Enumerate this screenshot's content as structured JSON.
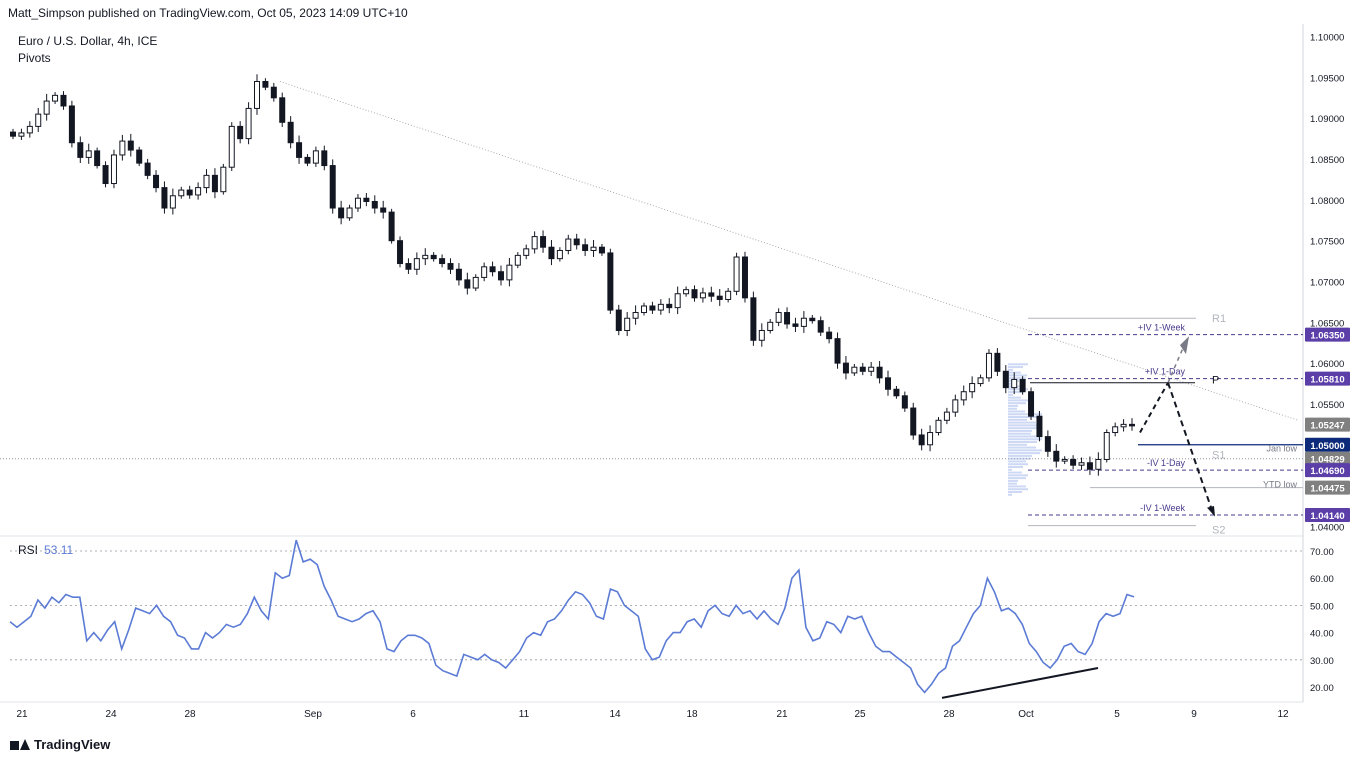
{
  "header": {
    "publisher_line": "Matt_Simpson published on TradingView.com, Oct 05, 2023 14:09 UTC+10"
  },
  "legend": {
    "symbol": "Euro / U.S. Dollar, 4h, ICE",
    "indicator": "Pivots"
  },
  "rsi": {
    "label": "RSI",
    "value": "53.11"
  },
  "footer": {
    "brand": "TradingView"
  },
  "colors": {
    "up": "#ffffff",
    "down": "#131722",
    "rsi": "#5b7bd5",
    "label_purple": "#5b3ea8",
    "label_navy": "#0d2a7a",
    "label_grey": "#808080"
  },
  "chart_data": {
    "type": "candlestick",
    "x_tick_labels": [
      "21",
      "24",
      "28",
      "Sep",
      "6",
      "11",
      "14",
      "18",
      "21",
      "25",
      "28",
      "Oct",
      "5",
      "9",
      "12"
    ],
    "y_tick_labels": [
      "1.10000",
      "1.09500",
      "1.09000",
      "1.08500",
      "1.08000",
      "1.07500",
      "1.07000",
      "1.06500",
      "1.06000",
      "1.05500",
      "1.05000",
      "1.04500",
      "1.04000"
    ],
    "ylim": [
      1.0395,
      1.1005
    ],
    "close_path": [
      1.0878,
      1.0882,
      1.089,
      1.0905,
      1.0921,
      1.0928,
      1.0915,
      1.087,
      1.0852,
      1.086,
      1.0842,
      1.082,
      1.0855,
      1.0872,
      1.0861,
      1.0845,
      1.083,
      1.0815,
      1.079,
      1.0805,
      1.0812,
      1.0806,
      1.0815,
      1.083,
      1.081,
      1.084,
      1.089,
      1.0875,
      1.0912,
      1.0945,
      1.0938,
      1.0925,
      1.0895,
      1.087,
      1.0852,
      1.0845,
      1.086,
      1.0842,
      1.079,
      1.0778,
      1.079,
      1.0802,
      1.0798,
      1.079,
      1.0785,
      1.075,
      1.0722,
      1.0715,
      1.0728,
      1.0732,
      1.0728,
      1.0722,
      1.0715,
      1.0702,
      1.0692,
      1.0705,
      1.0718,
      1.0712,
      1.0702,
      1.072,
      1.0732,
      1.074,
      1.0755,
      1.0742,
      1.0728,
      1.0738,
      1.0752,
      1.0745,
      1.0738,
      1.0742,
      1.0735,
      1.0665,
      1.064,
      1.0655,
      1.0662,
      1.067,
      1.0665,
      1.0672,
      1.0668,
      1.0685,
      1.069,
      1.068,
      1.0686,
      1.0682,
      1.0678,
      1.0688,
      1.073,
      1.068,
      1.0628,
      1.064,
      1.065,
      1.0662,
      1.0648,
      1.0645,
      1.0655,
      1.0652,
      1.0638,
      1.063,
      1.06,
      1.0588,
      1.0595,
      1.059,
      1.0595,
      1.0582,
      1.0568,
      1.056,
      1.0545,
      1.0512,
      1.05,
      1.0515,
      1.053,
      1.054,
      1.0555,
      1.0565,
      1.0575,
      1.0582,
      1.0612,
      1.059,
      1.057,
      1.058,
      1.0565,
      1.0535,
      1.051,
      1.0492,
      1.048,
      1.0482,
      1.0475,
      1.0478,
      1.047,
      1.0482,
      1.0515,
      1.0522,
      1.0525,
      1.0524
    ],
    "annotations": {
      "horizontal_levels": [
        {
          "label": "R1",
          "value": 1.0655,
          "style": "grey-solid",
          "tag": ""
        },
        {
          "label": "+IV 1-Week",
          "value": 1.0635,
          "style": "purple-dash",
          "tag": "1.06350"
        },
        {
          "label": "+IV 1-Day",
          "value": 1.0581,
          "style": "purple-dash",
          "tag": "1.05810"
        },
        {
          "label": "P",
          "value": 1.0576,
          "style": "dark-solid",
          "tag": ""
        },
        {
          "label": "",
          "value": 1.05247,
          "style": "none",
          "tag": "1.05247"
        },
        {
          "label": "",
          "value": 1.05,
          "style": "navy-solid",
          "tag": "1.05000"
        },
        {
          "label": "S1",
          "value": 1.0493,
          "style": "none",
          "tag": ""
        },
        {
          "label": "Jan low",
          "value": 1.04829,
          "style": "dotted",
          "tag": "1.04829"
        },
        {
          "label": "-IV 1-Day",
          "value": 1.0469,
          "style": "purple-dash",
          "tag": "1.04690"
        },
        {
          "label": "YTD low",
          "value": 1.04475,
          "style": "grey-solid",
          "tag": "1.04475"
        },
        {
          "label": "-IV 1-Week",
          "value": 1.0414,
          "style": "purple-dash",
          "tag": "1.04140"
        },
        {
          "label": "S2",
          "value": 1.0401,
          "style": "grey-solid",
          "tag": ""
        }
      ]
    },
    "rsi_series": [
      44,
      42,
      44,
      46,
      52,
      49,
      53,
      51,
      54,
      53,
      53,
      37,
      40,
      37,
      41,
      44,
      34,
      41,
      49,
      48,
      47,
      50,
      46,
      44,
      39,
      38,
      34,
      34,
      40,
      38,
      40,
      43,
      42,
      43,
      47,
      53,
      48,
      45,
      62,
      60,
      61,
      74,
      66,
      67,
      65,
      57,
      52,
      46,
      45,
      44,
      45,
      47,
      48,
      44,
      34,
      33,
      37,
      39,
      39,
      38,
      36,
      28,
      26,
      25,
      24,
      32,
      31,
      30,
      32,
      30,
      29,
      27,
      30,
      33,
      38,
      40,
      39,
      44,
      45,
      48,
      52,
      55,
      54,
      51,
      46,
      45,
      56,
      55,
      50,
      48,
      46,
      34,
      30,
      31,
      37,
      40,
      40,
      44,
      45,
      42,
      48,
      50,
      47,
      46,
      50,
      47,
      48,
      45,
      48,
      45,
      43,
      49,
      60,
      63,
      42,
      37,
      38,
      44,
      43,
      40,
      46,
      45,
      46,
      40,
      35,
      33,
      33,
      31,
      29,
      27,
      21,
      18,
      21,
      25,
      27,
      35,
      37,
      42,
      47,
      50,
      60,
      55,
      48,
      49,
      47,
      43,
      36,
      33,
      29,
      27,
      30,
      35,
      36,
      33,
      32,
      36,
      44,
      47,
      46,
      47,
      54,
      53.11
    ],
    "rsi_levels": [
      70,
      50,
      30
    ],
    "rsi_tick_labels": [
      "70.00",
      "60.00",
      "50.00",
      "40.00",
      "30.00",
      "20.00"
    ],
    "rsi_ylim": [
      13,
      77
    ]
  }
}
